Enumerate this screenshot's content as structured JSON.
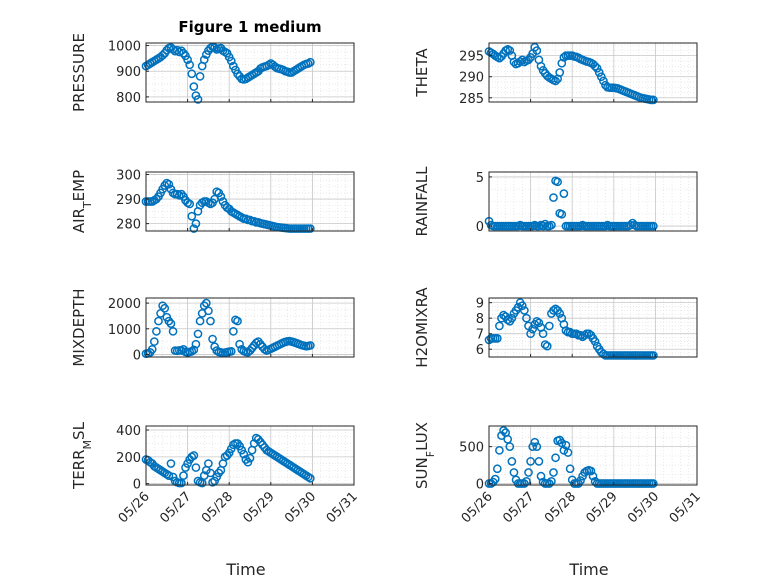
{
  "title": "Figure 1 medium",
  "colors": {
    "marker": "#0072BD",
    "axis": "#262626",
    "grid": "#c8c8c8",
    "minor_grid": "#dddddd"
  },
  "chart_data": [
    {
      "type": "scatter",
      "ylabel": "PRESSURE",
      "title": "Figure 1 medium",
      "xlabel": "",
      "ylim": [
        780,
        1010
      ],
      "yticks": [
        800,
        900,
        1000
      ],
      "grid": true,
      "x": [
        0.0,
        0.05,
        0.1,
        0.15,
        0.2,
        0.25,
        0.3,
        0.35,
        0.4,
        0.45,
        0.5,
        0.55,
        0.6,
        0.65,
        0.7,
        0.75,
        0.8,
        0.85,
        0.9,
        0.95,
        1.0,
        1.05,
        1.1,
        1.15,
        1.2,
        1.25,
        1.3,
        1.35,
        1.4,
        1.45,
        1.5,
        1.55,
        1.6,
        1.65,
        1.7,
        1.75,
        1.8,
        1.85,
        1.9,
        1.95,
        2.0,
        2.05,
        2.1,
        2.15,
        2.2,
        2.25,
        2.3,
        2.35,
        2.4,
        2.45,
        2.5,
        2.55,
        2.6,
        2.65,
        2.7,
        2.75,
        2.8,
        2.85,
        2.9,
        2.95,
        3.0,
        3.05,
        3.1,
        3.15,
        3.2,
        3.25,
        3.3,
        3.35,
        3.4,
        3.45,
        3.5,
        3.55,
        3.6,
        3.65,
        3.7,
        3.75,
        3.8,
        3.85,
        3.9,
        3.95
      ],
      "y": [
        920,
        925,
        930,
        935,
        940,
        945,
        950,
        955,
        962,
        970,
        982,
        990,
        992,
        985,
        978,
        982,
        975,
        980,
        970,
        960,
        945,
        925,
        890,
        840,
        805,
        790,
        880,
        920,
        945,
        965,
        980,
        990,
        995,
        992,
        985,
        988,
        990,
        980,
        975,
        970,
        955,
        940,
        920,
        905,
        890,
        880,
        870,
        868,
        870,
        875,
        880,
        885,
        890,
        895,
        900,
        910,
        915,
        918,
        920,
        925,
        930,
        925,
        918,
        912,
        910,
        908,
        905,
        900,
        898,
        895,
        895,
        900,
        905,
        910,
        915,
        920,
        925,
        928,
        930,
        935
      ]
    },
    {
      "type": "scatter",
      "ylabel": "THETA",
      "ylim": [
        284,
        298
      ],
      "yticks": [
        285,
        290,
        295
      ],
      "grid": true,
      "x": [
        0.0,
        0.05,
        0.1,
        0.15,
        0.2,
        0.25,
        0.3,
        0.35,
        0.4,
        0.45,
        0.5,
        0.55,
        0.6,
        0.65,
        0.7,
        0.75,
        0.8,
        0.85,
        0.9,
        0.95,
        1.0,
        1.05,
        1.1,
        1.15,
        1.2,
        1.25,
        1.3,
        1.35,
        1.4,
        1.45,
        1.5,
        1.55,
        1.6,
        1.65,
        1.7,
        1.75,
        1.8,
        1.85,
        1.9,
        1.95,
        2.0,
        2.05,
        2.1,
        2.15,
        2.2,
        2.25,
        2.3,
        2.35,
        2.4,
        2.45,
        2.5,
        2.55,
        2.6,
        2.65,
        2.7,
        2.75,
        2.8,
        2.85,
        2.9,
        2.95,
        3.0,
        3.05,
        3.1,
        3.15,
        3.2,
        3.25,
        3.3,
        3.35,
        3.4,
        3.45,
        3.5,
        3.55,
        3.6,
        3.65,
        3.7,
        3.75,
        3.8,
        3.85,
        3.9,
        3.95
      ],
      "y": [
        296.0,
        295.7,
        295.4,
        295.0,
        294.7,
        294.4,
        294.8,
        295.5,
        296.2,
        296.5,
        296.2,
        295.0,
        293.5,
        293.0,
        293.2,
        293.6,
        294.0,
        293.5,
        293.8,
        294.0,
        294.6,
        295.5,
        297.0,
        296.2,
        294.0,
        292.5,
        291.5,
        290.8,
        290.2,
        289.8,
        289.5,
        289.2,
        289.0,
        289.5,
        291.0,
        293.2,
        294.6,
        295.0,
        295.0,
        295.0,
        295.0,
        294.8,
        294.7,
        294.5,
        294.2,
        294.0,
        293.8,
        293.6,
        293.5,
        293.3,
        293.0,
        292.5,
        292.0,
        291.0,
        290.0,
        289.0,
        288.0,
        287.5,
        287.4,
        287.4,
        287.4,
        287.3,
        287.2,
        287.0,
        286.8,
        286.6,
        286.4,
        286.2,
        286.0,
        285.8,
        285.6,
        285.4,
        285.2,
        285.0,
        284.9,
        284.8,
        284.7,
        284.6,
        284.5,
        284.5
      ]
    },
    {
      "type": "scatter",
      "ylabel": "AIR_TEMP",
      "ylim": [
        277,
        301
      ],
      "yticks": [
        280,
        290,
        300
      ],
      "grid": true,
      "x": [
        0.0,
        0.05,
        0.1,
        0.15,
        0.2,
        0.25,
        0.3,
        0.35,
        0.4,
        0.45,
        0.5,
        0.55,
        0.6,
        0.65,
        0.7,
        0.75,
        0.8,
        0.85,
        0.9,
        0.95,
        1.0,
        1.05,
        1.1,
        1.15,
        1.2,
        1.25,
        1.3,
        1.35,
        1.4,
        1.45,
        1.5,
        1.55,
        1.6,
        1.65,
        1.7,
        1.75,
        1.8,
        1.85,
        1.9,
        1.95,
        2.0,
        2.05,
        2.1,
        2.15,
        2.2,
        2.25,
        2.3,
        2.35,
        2.4,
        2.45,
        2.5,
        2.55,
        2.6,
        2.65,
        2.7,
        2.75,
        2.8,
        2.85,
        2.9,
        2.95,
        3.0,
        3.05,
        3.1,
        3.15,
        3.2,
        3.25,
        3.3,
        3.35,
        3.4,
        3.45,
        3.5,
        3.55,
        3.6,
        3.65,
        3.7,
        3.75,
        3.8,
        3.85,
        3.9,
        3.95
      ],
      "y": [
        289,
        289,
        289,
        289,
        289.5,
        290,
        291,
        292.5,
        294,
        295.5,
        296.5,
        296,
        294,
        292.5,
        292,
        292,
        291.5,
        292,
        291,
        289.5,
        288.5,
        288,
        283,
        278,
        280,
        285,
        287.5,
        288.5,
        289,
        289,
        288.5,
        288,
        288.5,
        290,
        293,
        292.5,
        291,
        289,
        287.5,
        286.5,
        286,
        285,
        284.5,
        284,
        283.5,
        283,
        282.5,
        282,
        282,
        281.5,
        281.5,
        281,
        281,
        280.5,
        280.5,
        280.2,
        280,
        279.8,
        279.6,
        279.4,
        279.2,
        279.0,
        278.8,
        278.6,
        278.5,
        278.4,
        278.3,
        278.2,
        278.1,
        278.0,
        278.0,
        278.0,
        278.0,
        278.0,
        278.0,
        278.0,
        278.0,
        278.0,
        278.0,
        278.0
      ]
    },
    {
      "type": "scatter",
      "ylabel": "RAINFALL",
      "ylim": [
        -0.5,
        5.5
      ],
      "yticks": [
        0,
        5
      ],
      "grid": true,
      "x": [
        0.0,
        0.05,
        0.1,
        0.15,
        0.2,
        0.25,
        0.3,
        0.35,
        0.4,
        0.45,
        0.5,
        0.55,
        0.6,
        0.65,
        0.7,
        0.75,
        0.8,
        0.85,
        0.9,
        0.95,
        1.0,
        1.05,
        1.1,
        1.15,
        1.2,
        1.25,
        1.3,
        1.35,
        1.4,
        1.45,
        1.5,
        1.55,
        1.6,
        1.65,
        1.7,
        1.75,
        1.8,
        1.85,
        1.9,
        1.95,
        2.0,
        2.05,
        2.1,
        2.15,
        2.2,
        2.25,
        2.3,
        2.35,
        2.4,
        2.45,
        2.5,
        2.55,
        2.6,
        2.65,
        2.7,
        2.75,
        2.8,
        2.85,
        2.9,
        2.95,
        3.0,
        3.05,
        3.1,
        3.15,
        3.2,
        3.25,
        3.3,
        3.35,
        3.4,
        3.45,
        3.5,
        3.55,
        3.6,
        3.65,
        3.7,
        3.75,
        3.8,
        3.85,
        3.9,
        3.95
      ],
      "y": [
        0.5,
        0.1,
        0,
        0,
        0,
        0,
        0,
        0,
        0,
        0,
        0,
        0,
        0,
        0,
        0,
        0.1,
        0,
        0,
        0,
        0,
        0,
        0,
        0.1,
        0,
        0,
        0.1,
        0,
        0.2,
        0,
        0,
        0.1,
        2.9,
        4.6,
        4.5,
        1.3,
        1.2,
        3.3,
        0,
        0,
        0,
        0,
        0,
        0,
        0,
        0,
        0.1,
        0,
        0,
        0,
        0,
        0,
        0,
        0,
        0,
        0,
        0,
        0,
        0.1,
        0,
        0,
        0,
        0,
        0,
        0,
        0,
        0,
        0,
        0,
        0.1,
        0.3,
        0.1,
        0,
        0,
        0,
        0,
        0,
        0,
        0,
        0,
        0
      ]
    },
    {
      "type": "scatter",
      "ylabel": "MIXDEPTH",
      "ylim": [
        -100,
        2200
      ],
      "yticks": [
        0,
        1000,
        2000
      ],
      "grid": true,
      "x": [
        0.0,
        0.05,
        0.1,
        0.15,
        0.2,
        0.25,
        0.3,
        0.35,
        0.4,
        0.45,
        0.5,
        0.55,
        0.6,
        0.65,
        0.7,
        0.75,
        0.8,
        0.85,
        0.9,
        0.95,
        1.0,
        1.05,
        1.1,
        1.15,
        1.2,
        1.25,
        1.3,
        1.35,
        1.4,
        1.45,
        1.5,
        1.55,
        1.6,
        1.65,
        1.7,
        1.75,
        1.8,
        1.85,
        1.9,
        1.95,
        2.0,
        2.05,
        2.1,
        2.15,
        2.2,
        2.25,
        2.3,
        2.35,
        2.4,
        2.45,
        2.5,
        2.55,
        2.6,
        2.65,
        2.7,
        2.75,
        2.8,
        2.85,
        2.9,
        2.95,
        3.0,
        3.05,
        3.1,
        3.15,
        3.2,
        3.25,
        3.3,
        3.35,
        3.4,
        3.45,
        3.5,
        3.55,
        3.6,
        3.65,
        3.7,
        3.75,
        3.8,
        3.85,
        3.9,
        3.95
      ],
      "y": [
        30,
        40,
        80,
        200,
        500,
        900,
        1300,
        1600,
        1900,
        1800,
        1450,
        1300,
        1200,
        900,
        150,
        140,
        160,
        150,
        200,
        100,
        80,
        100,
        120,
        180,
        400,
        800,
        1300,
        1600,
        1900,
        2000,
        1700,
        1300,
        600,
        300,
        150,
        100,
        80,
        60,
        70,
        90,
        110,
        120,
        900,
        1350,
        1300,
        400,
        200,
        130,
        100,
        90,
        150,
        250,
        350,
        450,
        500,
        400,
        300,
        200,
        150,
        180,
        220,
        260,
        300,
        340,
        380,
        420,
        460,
        490,
        510,
        520,
        500,
        480,
        450,
        420,
        390,
        360,
        340,
        320,
        330,
        350
      ]
    },
    {
      "type": "scatter",
      "ylabel": "H2OMIXRA",
      "ylim": [
        5.5,
        9.3
      ],
      "yticks": [
        6,
        7,
        8,
        9
      ],
      "grid": true,
      "x": [
        0.0,
        0.05,
        0.1,
        0.15,
        0.2,
        0.25,
        0.3,
        0.35,
        0.4,
        0.45,
        0.5,
        0.55,
        0.6,
        0.65,
        0.7,
        0.75,
        0.8,
        0.85,
        0.9,
        0.95,
        1.0,
        1.05,
        1.1,
        1.15,
        1.2,
        1.25,
        1.3,
        1.35,
        1.4,
        1.45,
        1.5,
        1.55,
        1.6,
        1.65,
        1.7,
        1.75,
        1.8,
        1.85,
        1.9,
        1.95,
        2.0,
        2.05,
        2.1,
        2.15,
        2.2,
        2.25,
        2.3,
        2.35,
        2.4,
        2.45,
        2.5,
        2.55,
        2.6,
        2.65,
        2.7,
        2.75,
        2.8,
        2.85,
        2.9,
        2.95,
        3.0,
        3.05,
        3.1,
        3.15,
        3.2,
        3.25,
        3.3,
        3.35,
        3.4,
        3.45,
        3.5,
        3.55,
        3.6,
        3.65,
        3.7,
        3.75,
        3.8,
        3.85,
        3.9,
        3.95
      ],
      "y": [
        6.6,
        6.7,
        6.7,
        6.7,
        6.7,
        7.5,
        8.0,
        8.2,
        8.1,
        7.9,
        7.8,
        8.0,
        8.3,
        8.5,
        8.7,
        9.0,
        8.8,
        8.5,
        8.0,
        7.5,
        7.0,
        7.3,
        7.6,
        7.8,
        7.7,
        7.4,
        7.0,
        6.3,
        6.2,
        7.5,
        8.3,
        8.5,
        8.6,
        8.5,
        8.3,
        8.0,
        7.6,
        7.2,
        7.1,
        7.1,
        7.0,
        7.0,
        7.0,
        6.9,
        6.9,
        6.8,
        6.9,
        7.0,
        7.0,
        6.9,
        6.7,
        6.5,
        6.2,
        6.0,
        5.8,
        5.7,
        5.6,
        5.6,
        5.6,
        5.6,
        5.6,
        5.6,
        5.6,
        5.6,
        5.6,
        5.6,
        5.6,
        5.6,
        5.6,
        5.6,
        5.6,
        5.6,
        5.6,
        5.6,
        5.6,
        5.6,
        5.6,
        5.6,
        5.6,
        5.6
      ]
    },
    {
      "type": "scatter",
      "ylabel": "TERR_MSL",
      "ylim": [
        -10,
        430
      ],
      "yticks": [
        0,
        200,
        400
      ],
      "grid": true,
      "x": [
        0.0,
        0.05,
        0.1,
        0.15,
        0.2,
        0.25,
        0.3,
        0.35,
        0.4,
        0.45,
        0.5,
        0.55,
        0.6,
        0.65,
        0.7,
        0.75,
        0.8,
        0.85,
        0.9,
        0.95,
        1.0,
        1.05,
        1.1,
        1.15,
        1.2,
        1.25,
        1.3,
        1.35,
        1.4,
        1.45,
        1.5,
        1.55,
        1.6,
        1.65,
        1.7,
        1.75,
        1.8,
        1.85,
        1.9,
        1.95,
        2.0,
        2.05,
        2.1,
        2.15,
        2.2,
        2.25,
        2.3,
        2.35,
        2.4,
        2.45,
        2.5,
        2.55,
        2.6,
        2.65,
        2.7,
        2.75,
        2.8,
        2.85,
        2.9,
        2.95,
        3.0,
        3.05,
        3.1,
        3.15,
        3.2,
        3.25,
        3.3,
        3.35,
        3.4,
        3.45,
        3.5,
        3.55,
        3.6,
        3.65,
        3.7,
        3.75,
        3.8,
        3.85,
        3.9,
        3.95
      ],
      "y": [
        180,
        175,
        160,
        150,
        130,
        120,
        110,
        100,
        90,
        80,
        70,
        60,
        150,
        50,
        20,
        10,
        5,
        5,
        60,
        120,
        150,
        180,
        200,
        210,
        120,
        20,
        10,
        5,
        60,
        100,
        150,
        80,
        10,
        20,
        50,
        80,
        100,
        150,
        200,
        210,
        230,
        260,
        290,
        300,
        300,
        280,
        250,
        220,
        180,
        160,
        190,
        250,
        300,
        340,
        330,
        310,
        290,
        270,
        250,
        240,
        230,
        220,
        210,
        200,
        190,
        180,
        170,
        160,
        150,
        140,
        130,
        120,
        110,
        100,
        90,
        80,
        70,
        60,
        50,
        40
      ]
    },
    {
      "type": "scatter",
      "ylabel": "SUN_FLUX",
      "ylim": [
        -20,
        780
      ],
      "yticks": [
        0,
        500
      ],
      "grid": true,
      "x": [
        0.0,
        0.05,
        0.1,
        0.15,
        0.2,
        0.25,
        0.3,
        0.35,
        0.4,
        0.45,
        0.5,
        0.55,
        0.6,
        0.65,
        0.7,
        0.75,
        0.8,
        0.85,
        0.9,
        0.95,
        1.0,
        1.05,
        1.1,
        1.15,
        1.2,
        1.25,
        1.3,
        1.35,
        1.4,
        1.45,
        1.5,
        1.55,
        1.6,
        1.65,
        1.7,
        1.75,
        1.8,
        1.85,
        1.9,
        1.95,
        2.0,
        2.05,
        2.1,
        2.15,
        2.2,
        2.25,
        2.3,
        2.35,
        2.4,
        2.45,
        2.5,
        2.55,
        2.6,
        2.65,
        2.7,
        2.75,
        2.8,
        2.85,
        2.9,
        2.95,
        3.0,
        3.05,
        3.1,
        3.15,
        3.2,
        3.25,
        3.3,
        3.35,
        3.4,
        3.45,
        3.5,
        3.55,
        3.6,
        3.65,
        3.7,
        3.75,
        3.8,
        3.85,
        3.9,
        3.95
      ],
      "y": [
        0,
        0,
        20,
        60,
        200,
        450,
        650,
        720,
        690,
        600,
        500,
        300,
        150,
        50,
        0,
        0,
        0,
        0,
        30,
        150,
        300,
        500,
        560,
        500,
        300,
        100,
        20,
        0,
        0,
        0,
        30,
        150,
        350,
        580,
        590,
        550,
        450,
        520,
        420,
        200,
        50,
        0,
        0,
        0,
        40,
        100,
        150,
        170,
        180,
        170,
        100,
        30,
        0,
        0,
        0,
        0,
        0,
        0,
        0,
        0,
        0,
        0,
        0,
        0,
        0,
        0,
        0,
        0,
        0,
        0,
        0,
        0,
        0,
        0,
        0,
        0,
        0,
        0,
        0,
        0
      ]
    }
  ],
  "xaxis": {
    "ticks": [
      0,
      1,
      2,
      3,
      4,
      5
    ],
    "tick_labels": [
      "05/26",
      "05/27",
      "05/28",
      "05/29",
      "05/30",
      "05/31"
    ],
    "xlim": [
      0,
      5
    ],
    "label": "Time"
  },
  "ylabels": [
    "PRESSURE",
    "THETA",
    "AIR_TEMP",
    "RAINFALL",
    "MIXDEPTH",
    "H2OMIXRA",
    "TERR_MSL",
    "SUN_FLUX"
  ]
}
